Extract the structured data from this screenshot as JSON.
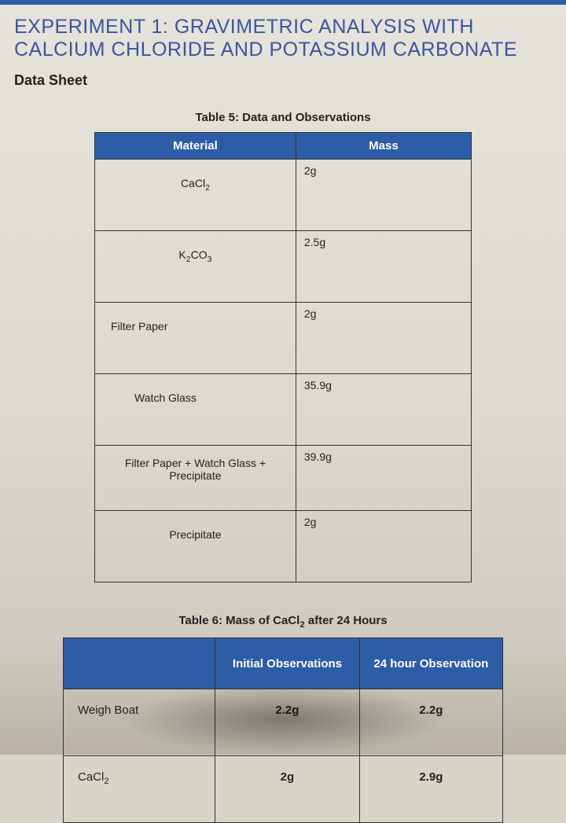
{
  "title": "EXPERIMENT 1: GRAVIMETRIC ANALYSIS WITH CALCIUM CHLORIDE AND POTASSIUM CARBONATE",
  "subtitle": "Data Sheet",
  "colors": {
    "header_bg": "#2e5da8",
    "header_text": "#ffffff",
    "border": "#333333",
    "title_color": "#3a55a0",
    "page_bg_top": "#e6e3da",
    "page_bg_bottom": "#b8b3a6"
  },
  "table5": {
    "caption": "Table 5: Data and Observations",
    "columns": [
      "Material",
      "Mass"
    ],
    "rows": [
      {
        "material_html": "CaCl<sub>2</sub>",
        "mass": "2g"
      },
      {
        "material_html": "K<sub>2</sub>CO<sub>3</sub>",
        "mass": "2.5g"
      },
      {
        "material_html": "Filter Paper",
        "mass": "2g"
      },
      {
        "material_html": "Watch Glass",
        "mass": "35.9g"
      },
      {
        "material_html": "Filter Paper + Watch Glass + Precipitate",
        "mass": "39.9g"
      },
      {
        "material_html": "Precipitate",
        "mass": "2g"
      }
    ]
  },
  "table6": {
    "caption_html": "Table 6: Mass of CaCl<sub>2</sub> after 24 Hours",
    "columns": [
      "",
      "Initial Observations",
      "24 hour Observation"
    ],
    "rows": [
      {
        "label_html": "Weigh Boat",
        "initial": "2.2g",
        "after": "2.2g"
      },
      {
        "label_html": "CaCl<sub>2</sub>",
        "initial": "2g",
        "after": "2.9g"
      }
    ]
  }
}
